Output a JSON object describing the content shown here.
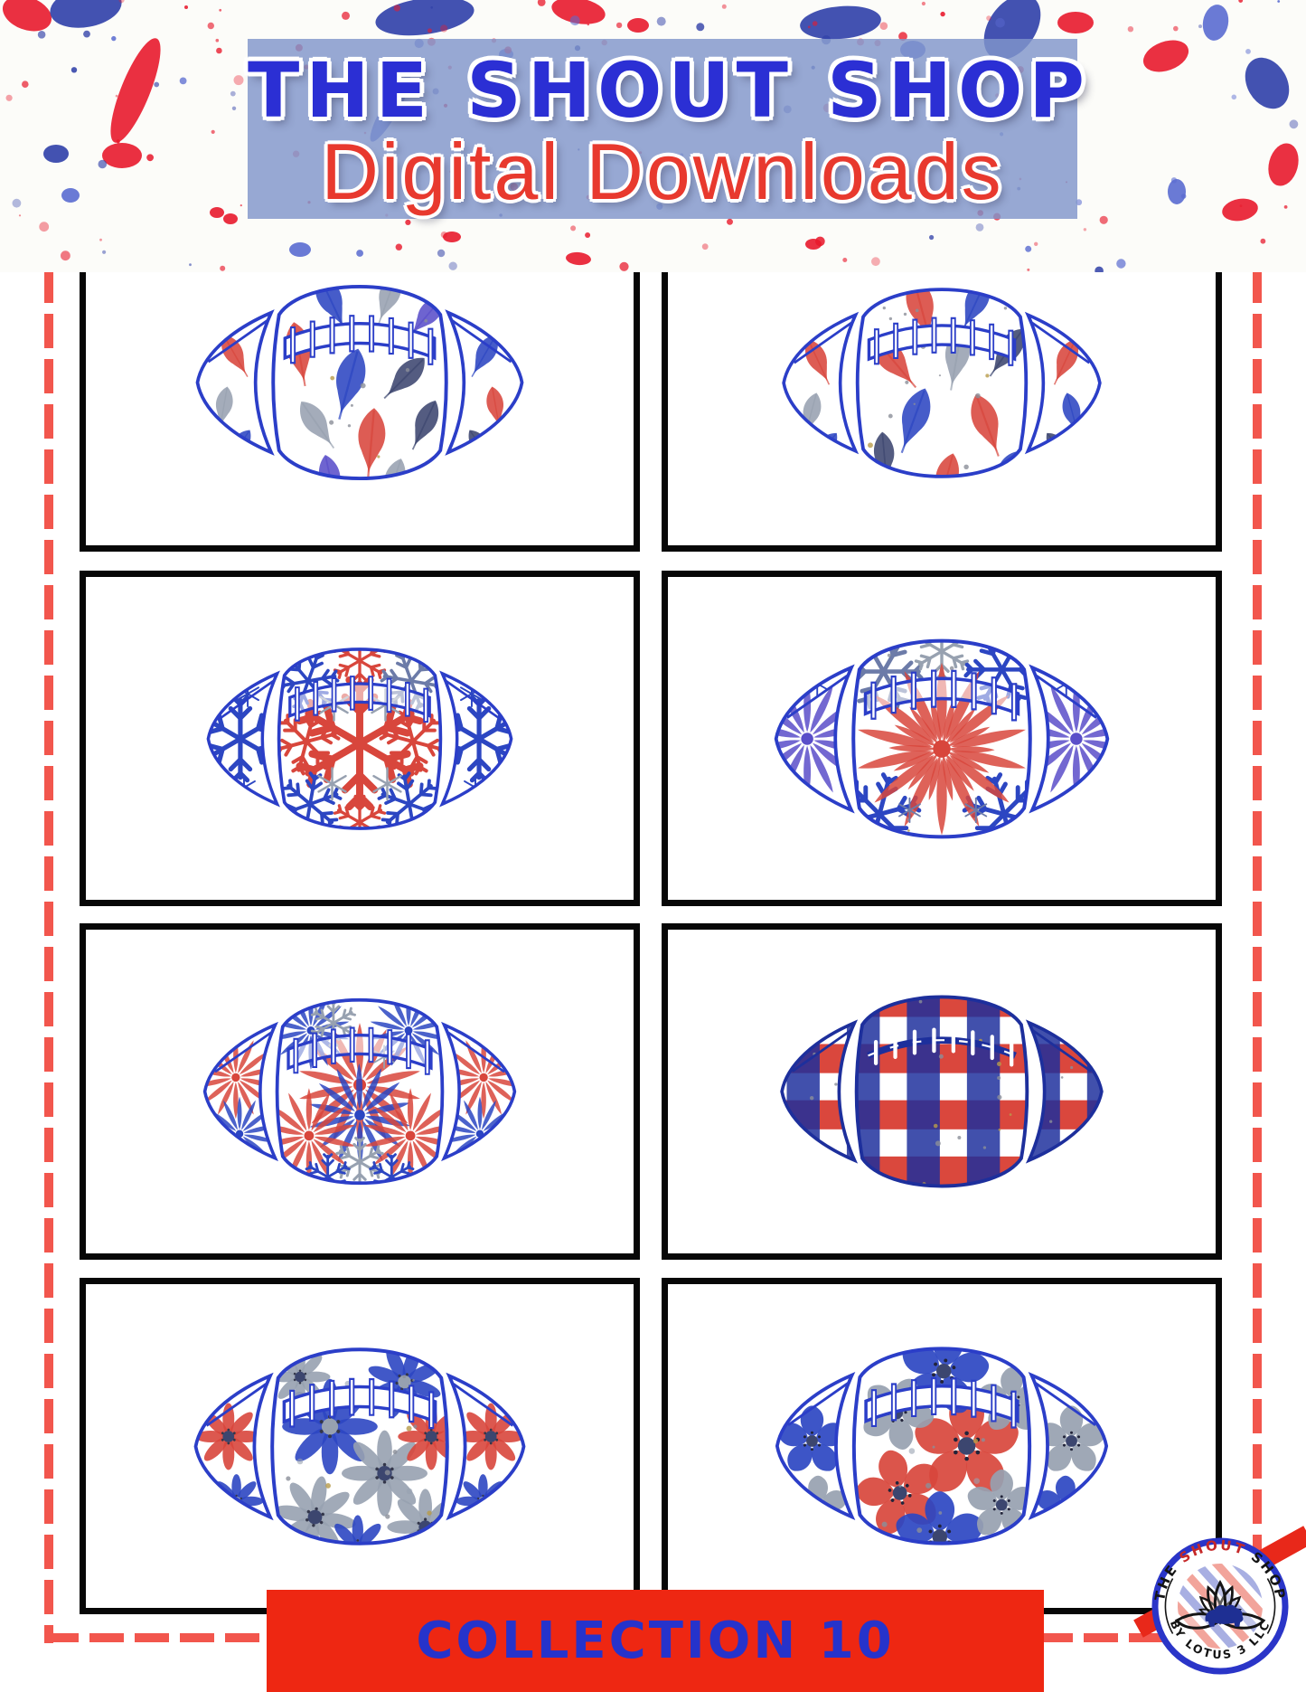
{
  "header": {
    "title": "THE SHOUT SHOP",
    "subtitle": "Digital Downloads",
    "title_color": "#2b2fd4",
    "subtitle_color": "#e8392e",
    "band_color": "#8095cb",
    "splatter_colors": {
      "red": "#e8192c",
      "blue_dark": "#2f3fa8",
      "blue_mid": "#5a6bd0"
    }
  },
  "collection": {
    "label": "COLLECTION 10",
    "banner_color": "#ee2712",
    "text_color": "#2633cb"
  },
  "logo": {
    "text_top_parts": [
      "THE ",
      "SHOUT",
      " SHOP"
    ],
    "text_bottom": "BY LOTUS 3 LLC",
    "ring_color": "#2a35c8",
    "shout_color": "#c62828",
    "buffalo_color": "#1e2f93",
    "stripe_colors": [
      "#9fa6df",
      "#f19a90"
    ]
  },
  "frame": {
    "box_border_color": "#070707",
    "dashed_border_color": "#f2564d"
  },
  "palette": {
    "outline": "#2b3ec8",
    "red": "#d8463c",
    "blue": "#2c46c2",
    "navy": "#3c466f",
    "silver": "#97a1b0",
    "violet": "#5a4ec9",
    "steel": "#6c7ba8",
    "plaid_navy": "#1d2f9c",
    "plaid_red": "#d63428",
    "gold": "#b89b4a",
    "white": "#ffffff"
  },
  "grid": {
    "rows": 4,
    "cols": 2,
    "cells": [
      {
        "design_name": "football-watercolor-leaves-1",
        "pattern": "leaves",
        "description": "Football with red, blue, navy and silver watercolor leaves",
        "laces": "band"
      },
      {
        "design_name": "football-watercolor-maple-leaves",
        "pattern": "leaves2",
        "description": "Football with red, blue and gray watercolor maple leaves and glitter",
        "laces": "band"
      },
      {
        "design_name": "football-snowflakes-red-blue",
        "pattern": "snowflakes",
        "description": "Football with large red snowflake center, blue snowflakes and gray sparkles",
        "laces": "open"
      },
      {
        "design_name": "football-red-starburst-snowflake",
        "pattern": "starburst",
        "description": "Football with big red starburst snowflake and blue snowflake corners",
        "laces": "open"
      },
      {
        "design_name": "football-red-blue-snowflake-bursts",
        "pattern": "bursts",
        "description": "Football with red and blue spiky snowflake bursts and gray flakes",
        "laces": "open"
      },
      {
        "design_name": "football-buffalo-plaid",
        "pattern": "plaid",
        "description": "Football covered in red, white and navy watercolor buffalo plaid with glitter specks",
        "laces": "stitch"
      },
      {
        "design_name": "football-watercolor-daisies",
        "pattern": "daisies",
        "description": "Football with blue, red and silver-gray watercolor cosmos daisies",
        "laces": "band"
      },
      {
        "design_name": "football-watercolor-poppies",
        "pattern": "poppies",
        "description": "Football with red, blue and gray watercolor poppy flowers",
        "laces": "band"
      }
    ]
  }
}
